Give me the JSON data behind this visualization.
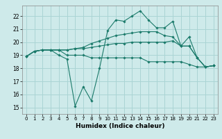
{
  "xlabel": "Humidex (Indice chaleur)",
  "bg_color": "#ceeaea",
  "grid_color": "#aad4d4",
  "line_color": "#1a7a6a",
  "xlim": [
    -0.5,
    23.5
  ],
  "ylim": [
    14.5,
    22.8
  ],
  "yticks": [
    15,
    16,
    17,
    18,
    19,
    20,
    21,
    22
  ],
  "xticks": [
    0,
    1,
    2,
    3,
    4,
    5,
    6,
    7,
    8,
    9,
    10,
    11,
    12,
    13,
    14,
    15,
    16,
    17,
    18,
    19,
    20,
    21,
    22,
    23
  ],
  "series": [
    [
      18.9,
      19.3,
      19.4,
      19.4,
      19.4,
      19.0,
      19.0,
      19.0,
      18.8,
      18.8,
      18.8,
      18.8,
      18.8,
      18.8,
      18.8,
      18.5,
      18.5,
      18.5,
      18.5,
      18.5,
      18.3,
      18.1,
      18.1,
      18.2
    ],
    [
      18.9,
      19.3,
      19.4,
      19.4,
      19.4,
      19.4,
      19.5,
      19.5,
      19.6,
      19.7,
      19.8,
      19.9,
      19.9,
      20.0,
      20.0,
      20.0,
      20.0,
      20.0,
      20.1,
      19.7,
      19.7,
      18.8,
      18.1,
      18.2
    ],
    [
      18.9,
      19.3,
      19.4,
      19.4,
      19.4,
      19.4,
      19.5,
      19.6,
      19.9,
      20.1,
      20.3,
      20.5,
      20.6,
      20.7,
      20.8,
      20.8,
      20.8,
      20.5,
      20.4,
      19.7,
      19.7,
      18.8,
      18.1,
      18.2
    ],
    [
      18.9,
      19.3,
      19.4,
      19.4,
      19.0,
      18.7,
      15.1,
      16.6,
      15.5,
      18.0,
      20.9,
      21.7,
      21.6,
      22.0,
      22.4,
      21.7,
      21.1,
      21.1,
      21.6,
      19.7,
      20.4,
      18.8,
      18.1,
      18.2
    ]
  ]
}
